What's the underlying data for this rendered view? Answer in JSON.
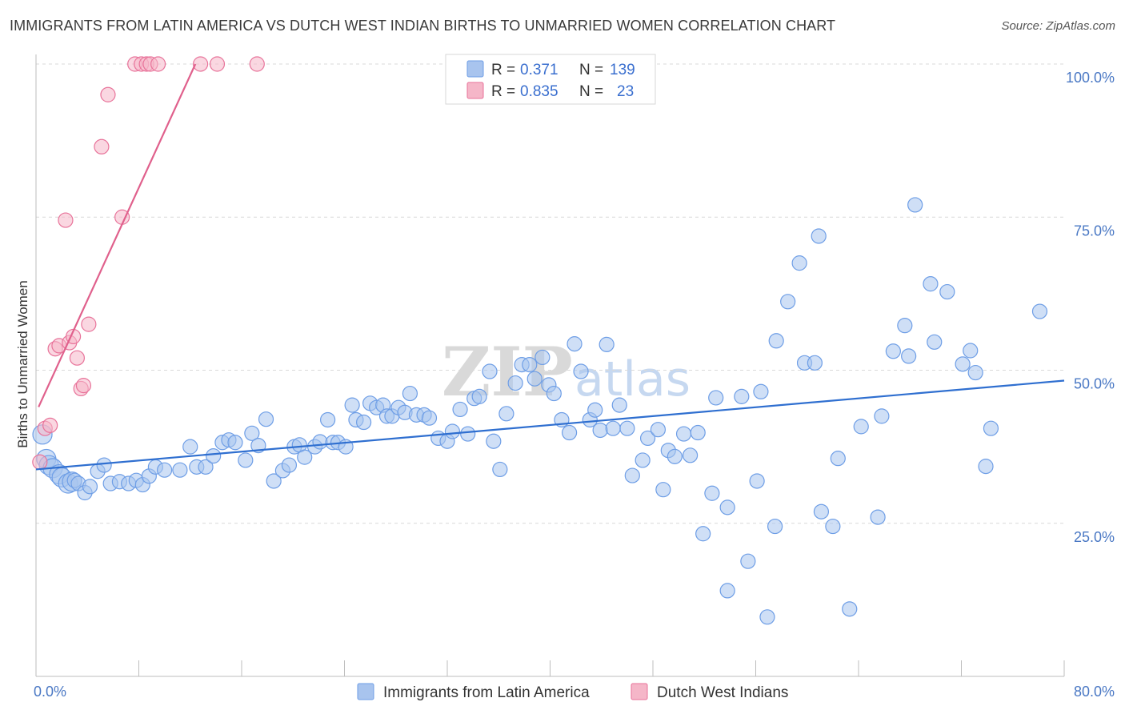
{
  "title": "IMMIGRANTS FROM LATIN AMERICA VS DUTCH WEST INDIAN BIRTHS TO UNMARRIED WOMEN CORRELATION CHART",
  "source": "Source: ZipAtlas.com",
  "watermark": {
    "part1": "ZIP",
    "part2": "atlas"
  },
  "legend_top": {
    "rows": [
      {
        "r_label": "R =",
        "r_value": "0.371",
        "n_label": "N =",
        "n_value": "139",
        "color": "#a8c4ee"
      },
      {
        "r_label": "R =",
        "r_value": "0.835",
        "n_label": "N =",
        "n_value": "23",
        "color": "#f5b6c8"
      }
    ]
  },
  "legend_bottom": [
    {
      "label": "Immigrants from Latin America",
      "color": "#a8c4ee"
    },
    {
      "label": "Dutch West Indians",
      "color": "#f5b6c8"
    }
  ],
  "chart_data": {
    "type": "scatter",
    "title": "IMMIGRANTS FROM LATIN AMERICA VS DUTCH WEST INDIAN BIRTHS TO UNMARRIED WOMEN CORRELATION CHART",
    "xlabel": "",
    "ylabel": "Births to Unmarried Women",
    "xlim": [
      0,
      80
    ],
    "ylim": [
      0,
      100
    ],
    "x_tick_labels": [
      "0.0%",
      "80.0%"
    ],
    "y_ticks": [
      25,
      50,
      75,
      100
    ],
    "y_tick_labels": [
      "25.0%",
      "50.0%",
      "75.0%",
      "100.0%"
    ],
    "grid": "horizontal dashed",
    "legend_position": "top-center",
    "series": [
      {
        "name": "Immigrants from Latin America",
        "color": "#6e9ee6",
        "fill": "#a8c4ee",
        "trend": {
          "x": [
            0,
            80
          ],
          "y": [
            33.8,
            48.3
          ]
        },
        "points": [
          [
            0.5,
            39.5
          ],
          [
            0.8,
            35.5
          ],
          [
            1.0,
            34.5
          ],
          [
            1.3,
            34.0
          ],
          [
            1.8,
            33.0
          ],
          [
            2.0,
            32.5
          ],
          [
            2.5,
            31.5
          ],
          [
            2.8,
            31.8
          ],
          [
            3.0,
            32.0
          ],
          [
            3.3,
            31.5
          ],
          [
            3.8,
            30.0
          ],
          [
            4.2,
            31.0
          ],
          [
            4.8,
            33.5
          ],
          [
            5.8,
            31.5
          ],
          [
            5.3,
            34.5
          ],
          [
            6.5,
            31.8
          ],
          [
            7.2,
            31.5
          ],
          [
            7.8,
            32.0
          ],
          [
            8.3,
            31.3
          ],
          [
            8.8,
            32.7
          ],
          [
            9.3,
            34.2
          ],
          [
            10.0,
            33.7
          ],
          [
            11.2,
            33.7
          ],
          [
            12.0,
            37.5
          ],
          [
            12.5,
            34.2
          ],
          [
            13.2,
            34.2
          ],
          [
            13.8,
            36.0
          ],
          [
            14.5,
            38.2
          ],
          [
            15.0,
            38.6
          ],
          [
            15.5,
            38.2
          ],
          [
            16.3,
            35.3
          ],
          [
            16.8,
            39.7
          ],
          [
            17.3,
            37.7
          ],
          [
            17.9,
            42.0
          ],
          [
            18.5,
            31.9
          ],
          [
            19.2,
            33.6
          ],
          [
            19.7,
            34.5
          ],
          [
            20.1,
            37.5
          ],
          [
            20.5,
            37.8
          ],
          [
            20.9,
            35.8
          ],
          [
            21.7,
            37.5
          ],
          [
            22.1,
            38.3
          ],
          [
            22.7,
            41.9
          ],
          [
            23.1,
            38.2
          ],
          [
            23.5,
            38.2
          ],
          [
            24.1,
            37.5
          ],
          [
            24.6,
            44.3
          ],
          [
            24.9,
            41.9
          ],
          [
            25.5,
            41.5
          ],
          [
            26.0,
            44.6
          ],
          [
            26.5,
            43.9
          ],
          [
            27.0,
            44.3
          ],
          [
            27.3,
            42.5
          ],
          [
            27.7,
            42.5
          ],
          [
            28.2,
            43.9
          ],
          [
            28.7,
            43.1
          ],
          [
            29.1,
            46.2
          ],
          [
            29.6,
            42.7
          ],
          [
            30.2,
            42.7
          ],
          [
            30.6,
            42.2
          ],
          [
            31.3,
            38.9
          ],
          [
            32.0,
            38.4
          ],
          [
            32.4,
            40.0
          ],
          [
            33.0,
            43.6
          ],
          [
            33.6,
            39.6
          ],
          [
            34.1,
            45.4
          ],
          [
            34.5,
            45.7
          ],
          [
            35.3,
            49.8
          ],
          [
            35.6,
            38.4
          ],
          [
            36.1,
            33.8
          ],
          [
            36.6,
            42.9
          ],
          [
            37.3,
            47.9
          ],
          [
            37.8,
            50.9
          ],
          [
            38.4,
            50.9
          ],
          [
            38.8,
            48.6
          ],
          [
            39.4,
            52.1
          ],
          [
            39.9,
            47.6
          ],
          [
            40.3,
            46.2
          ],
          [
            40.9,
            41.9
          ],
          [
            41.5,
            39.8
          ],
          [
            41.9,
            54.3
          ],
          [
            42.4,
            49.8
          ],
          [
            43.1,
            41.9
          ],
          [
            43.5,
            43.5
          ],
          [
            43.9,
            40.2
          ],
          [
            44.4,
            54.2
          ],
          [
            44.9,
            40.5
          ],
          [
            45.4,
            44.3
          ],
          [
            46.0,
            40.5
          ],
          [
            46.4,
            32.8
          ],
          [
            47.2,
            35.3
          ],
          [
            47.6,
            38.9
          ],
          [
            48.4,
            40.3
          ],
          [
            48.8,
            30.5
          ],
          [
            49.2,
            36.9
          ],
          [
            49.7,
            35.9
          ],
          [
            50.4,
            39.6
          ],
          [
            50.9,
            36.1
          ],
          [
            51.5,
            39.8
          ],
          [
            51.9,
            23.3
          ],
          [
            52.6,
            29.9
          ],
          [
            52.9,
            45.5
          ],
          [
            53.8,
            27.6
          ],
          [
            53.8,
            14.0
          ],
          [
            54.9,
            45.7
          ],
          [
            55.4,
            18.8
          ],
          [
            56.1,
            31.9
          ],
          [
            56.4,
            46.5
          ],
          [
            56.9,
            9.7
          ],
          [
            57.5,
            24.5
          ],
          [
            57.6,
            54.8
          ],
          [
            58.5,
            61.2
          ],
          [
            59.4,
            67.5
          ],
          [
            59.8,
            51.2
          ],
          [
            60.6,
            51.2
          ],
          [
            60.9,
            71.9
          ],
          [
            61.1,
            26.9
          ],
          [
            62.0,
            24.5
          ],
          [
            62.4,
            35.6
          ],
          [
            63.3,
            11.0
          ],
          [
            64.2,
            40.8
          ],
          [
            65.5,
            26.0
          ],
          [
            65.8,
            42.5
          ],
          [
            66.7,
            53.1
          ],
          [
            67.6,
            57.3
          ],
          [
            67.9,
            52.3
          ],
          [
            68.4,
            77.0
          ],
          [
            69.6,
            64.1
          ],
          [
            69.9,
            54.6
          ],
          [
            70.9,
            62.8
          ],
          [
            72.1,
            51.0
          ],
          [
            72.7,
            53.2
          ],
          [
            73.1,
            49.6
          ],
          [
            73.9,
            34.3
          ],
          [
            74.3,
            40.5
          ],
          [
            78.1,
            59.6
          ]
        ]
      },
      {
        "name": "Dutch West Indians",
        "color": "#e8739a",
        "fill": "#f5b6c8",
        "trend": {
          "x": [
            0.2,
            12.4
          ],
          "y": [
            44.0,
            100.0
          ]
        },
        "points": [
          [
            0.3,
            35.0
          ],
          [
            0.7,
            40.5
          ],
          [
            1.1,
            41.0
          ],
          [
            1.5,
            53.5
          ],
          [
            1.8,
            54.0
          ],
          [
            2.3,
            74.5
          ],
          [
            2.6,
            54.5
          ],
          [
            2.9,
            55.5
          ],
          [
            3.2,
            52.0
          ],
          [
            3.5,
            47.0
          ],
          [
            3.7,
            47.5
          ],
          [
            4.1,
            57.5
          ],
          [
            5.1,
            86.5
          ],
          [
            5.6,
            95.0
          ],
          [
            6.7,
            75.0
          ],
          [
            7.7,
            100.0
          ],
          [
            8.2,
            100.0
          ],
          [
            8.6,
            100.0
          ],
          [
            8.9,
            100.0
          ],
          [
            9.5,
            100.0
          ],
          [
            12.8,
            100.0
          ],
          [
            14.1,
            100.0
          ],
          [
            17.2,
            100.0
          ]
        ]
      }
    ]
  }
}
